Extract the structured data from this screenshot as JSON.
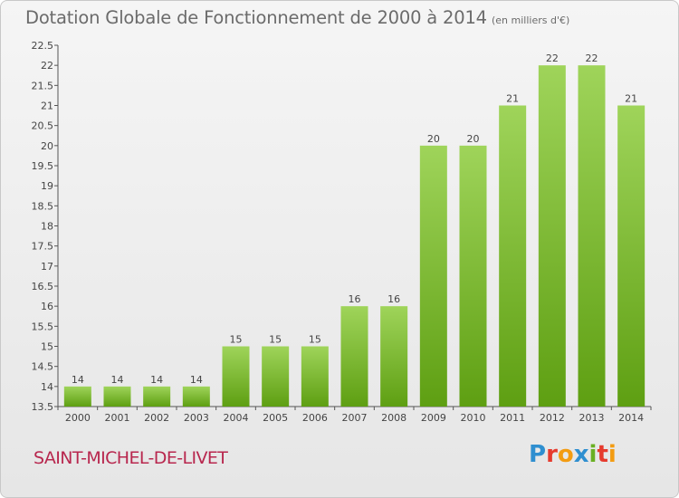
{
  "header": {
    "title": "Dotation Globale de Fonctionnement de 2000 à 2014",
    "unit_note": "(en milliers d'€)"
  },
  "footer": {
    "commune": "SAINT-MICHEL-DE-LIVET",
    "logo_text": "Proxiti",
    "logo_colors": [
      "#2f8fd0",
      "#e63b2e",
      "#f39c12",
      "#2f8fd0",
      "#6ab023",
      "#e63b2e",
      "#f39c12"
    ]
  },
  "chart_data": {
    "type": "bar",
    "title": "Dotation Globale de Fonctionnement de 2000 à 2014",
    "subtitle": "(en milliers d'€)",
    "xlabel": "",
    "ylabel": "",
    "categories": [
      "2000",
      "2001",
      "2002",
      "2003",
      "2004",
      "2005",
      "2006",
      "2007",
      "2008",
      "2009",
      "2010",
      "2011",
      "2012",
      "2013",
      "2014"
    ],
    "values": [
      14,
      14,
      14,
      14,
      15,
      15,
      15,
      16,
      16,
      20,
      20,
      21,
      22,
      22,
      21
    ],
    "data_labels": [
      "14",
      "14",
      "14",
      "14",
      "15",
      "15",
      "15",
      "16",
      "16",
      "20",
      "20",
      "21",
      "22",
      "22",
      "21"
    ],
    "ylim": [
      13.5,
      22.5
    ],
    "yticks": [
      13.5,
      14,
      14.5,
      15,
      15.5,
      16,
      16.5,
      17,
      17.5,
      18,
      18.5,
      19,
      19.5,
      20,
      20.5,
      21,
      21.5,
      22,
      22.5
    ],
    "ytick_labels": [
      "13.5",
      "14",
      "14.5",
      "15",
      "15.5",
      "16",
      "16.5",
      "17",
      "17.5",
      "18",
      "18.5",
      "19",
      "19.5",
      "20",
      "20.5",
      "21",
      "21.5",
      "22",
      "22.5"
    ],
    "grid": false,
    "bar_color_top": "#9fd45a",
    "bar_color_bottom": "#5e9f12",
    "legend": "none"
  }
}
